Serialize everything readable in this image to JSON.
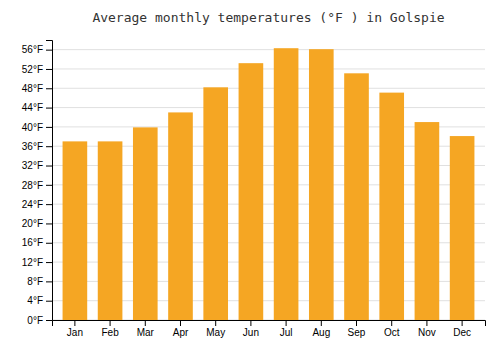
{
  "chart_data": {
    "type": "bar",
    "title": "Average monthly temperatures (°F ) in Golspie",
    "categories": [
      "Jan",
      "Feb",
      "Mar",
      "Apr",
      "May",
      "Jun",
      "Jul",
      "Aug",
      "Sep",
      "Oct",
      "Nov",
      "Dec"
    ],
    "values": [
      37.0,
      37.0,
      39.9,
      43.0,
      48.2,
      53.2,
      56.3,
      56.1,
      51.1,
      47.1,
      41.0,
      38.1
    ],
    "color": "#F5A623",
    "ylim": [
      0,
      58
    ],
    "yticks": [
      {
        "value": 0,
        "label": "0°F"
      },
      {
        "value": 4,
        "label": "4°F"
      },
      {
        "value": 8,
        "label": "8°F"
      },
      {
        "value": 12,
        "label": "12°F"
      },
      {
        "value": 16,
        "label": "16°F"
      },
      {
        "value": 20,
        "label": "20°F"
      },
      {
        "value": 24,
        "label": "24°F"
      },
      {
        "value": 28,
        "label": "28°F"
      },
      {
        "value": 32,
        "label": "32°F"
      },
      {
        "value": 36,
        "label": "36°F"
      },
      {
        "value": 40,
        "label": "40°F"
      },
      {
        "value": 44,
        "label": "44°F"
      },
      {
        "value": 48,
        "label": "48°F"
      },
      {
        "value": 52,
        "label": "52°F"
      },
      {
        "value": 56,
        "label": "56°F"
      }
    ],
    "grid": true
  }
}
